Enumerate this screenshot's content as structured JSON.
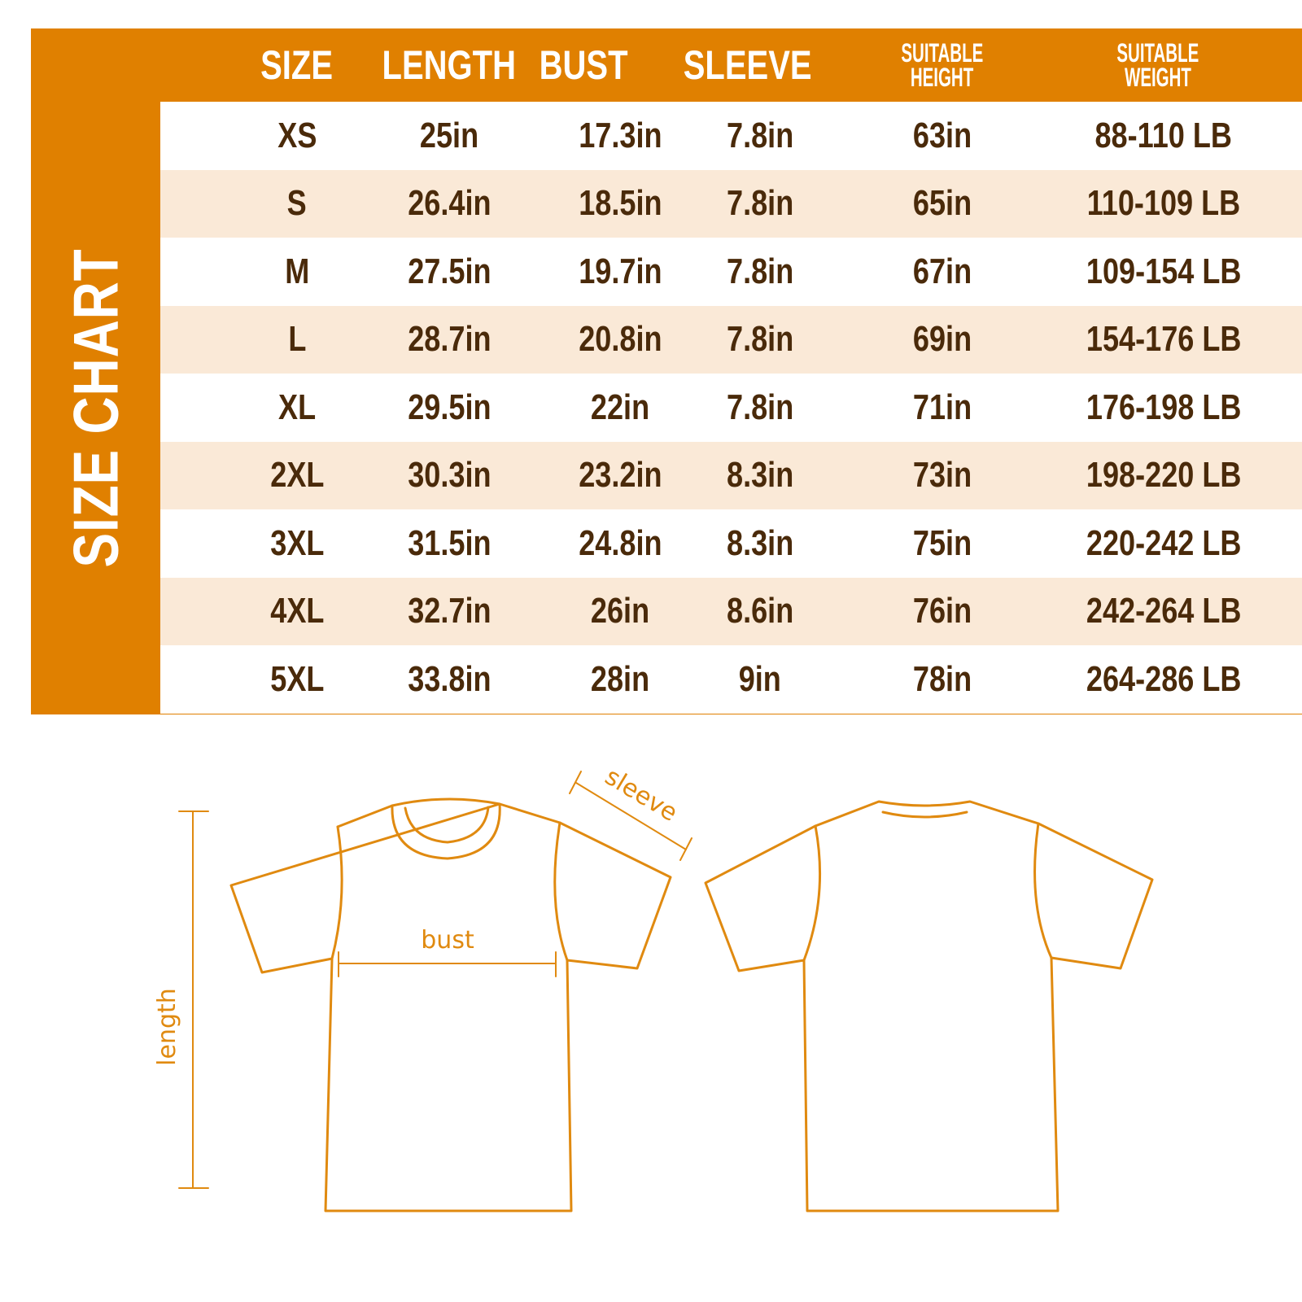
{
  "title": "SIZE CHART",
  "colors": {
    "accent": "#E08000",
    "row_alt": "#FAE9D7",
    "text": "#4A2A0A",
    "header_text": "#FFFFFF"
  },
  "table": {
    "headers": [
      "SIZE",
      "LENGTH",
      "BUST",
      "SLEEVE",
      "SUITABLE HEIGHT",
      "SUITABLE WEIGHT"
    ],
    "header_lines": {
      "height": [
        "SUITABLE",
        "HEIGHT"
      ],
      "weight": [
        "SUITABLE",
        "WEIGHT"
      ]
    },
    "rows": [
      [
        "XS",
        "25in",
        "17.3in",
        "7.8in",
        "63in",
        "88-110 LB"
      ],
      [
        "S",
        "26.4in",
        "18.5in",
        "7.8in",
        "65in",
        "110-109 LB"
      ],
      [
        "M",
        "27.5in",
        "19.7in",
        "7.8in",
        "67in",
        "109-154 LB"
      ],
      [
        "L",
        "28.7in",
        "20.8in",
        "7.8in",
        "69in",
        "154-176 LB"
      ],
      [
        "XL",
        "29.5in",
        "22in",
        "7.8in",
        "71in",
        "176-198 LB"
      ],
      [
        "2XL",
        "30.3in",
        "23.2in",
        "8.3in",
        "73in",
        "198-220 LB"
      ],
      [
        "3XL",
        "31.5in",
        "24.8in",
        "8.3in",
        "75in",
        "220-242 LB"
      ],
      [
        "4XL",
        "32.7in",
        "26in",
        "8.6in",
        "76in",
        "242-264 LB"
      ],
      [
        "5XL",
        "33.8in",
        "28in",
        "9in",
        "78in",
        "264-286 LB"
      ]
    ]
  },
  "diagram": {
    "length_label": "length",
    "bust_label": "bust",
    "sleeve_label": "sleeve"
  }
}
